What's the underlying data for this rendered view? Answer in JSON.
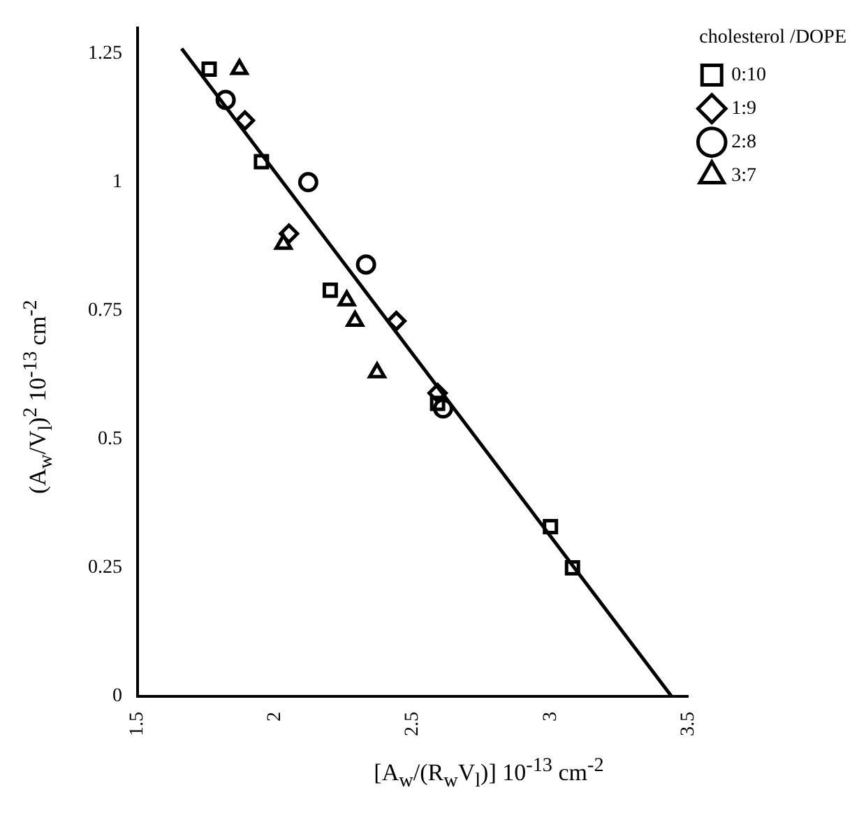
{
  "chart_data": {
    "type": "scatter",
    "xlabel": "[A$_{w}$/(R$_{w}$V$_{l}$)]  10$^{-13}$  cm$^{-2}$",
    "ylabel": "(A$_{w}$/V$_{l}$)$^{2}$  10$^{-13}$  cm$^{-2}$",
    "legend_title": "cholesterol /DOPE",
    "legend": "top right",
    "grid": false,
    "xlim": [
      1.5,
      3.5
    ],
    "xticks": [
      1.5,
      2,
      2.5,
      3,
      3.5
    ],
    "ylim": [
      0,
      1.3
    ],
    "yticks": [
      0,
      0.25,
      0.5,
      0.75,
      1,
      1.25
    ],
    "series": [
      {
        "name": "0:10",
        "color": "#000000",
        "marker": "square",
        "x": [
          1.76,
          1.95,
          2.2,
          2.59,
          3.0,
          3.08
        ],
        "values": [
          1.22,
          1.04,
          0.79,
          0.57,
          0.33,
          0.25
        ]
      },
      {
        "name": "1:9",
        "color": "#000000",
        "marker": "diamond",
        "x": [
          1.89,
          2.05,
          2.44,
          2.59
        ],
        "values": [
          1.12,
          0.9,
          0.73,
          0.59
        ]
      },
      {
        "name": "2:8",
        "color": "#000000",
        "marker": "circle",
        "x": [
          1.82,
          2.12,
          2.33,
          2.61
        ],
        "values": [
          1.16,
          1.0,
          0.84,
          0.56
        ]
      },
      {
        "name": "3:7",
        "color": "#000000",
        "marker": "triangle",
        "x": [
          1.87,
          2.03,
          2.26,
          2.29,
          2.37
        ],
        "values": [
          1.22,
          0.88,
          0.77,
          0.73,
          0.63
        ]
      },
      {
        "type": "line",
        "color": "#000000",
        "marker": "none",
        "line_style": "solid",
        "x": [
          1.66,
          3.44
        ],
        "values": [
          1.26,
          0
        ]
      }
    ]
  }
}
